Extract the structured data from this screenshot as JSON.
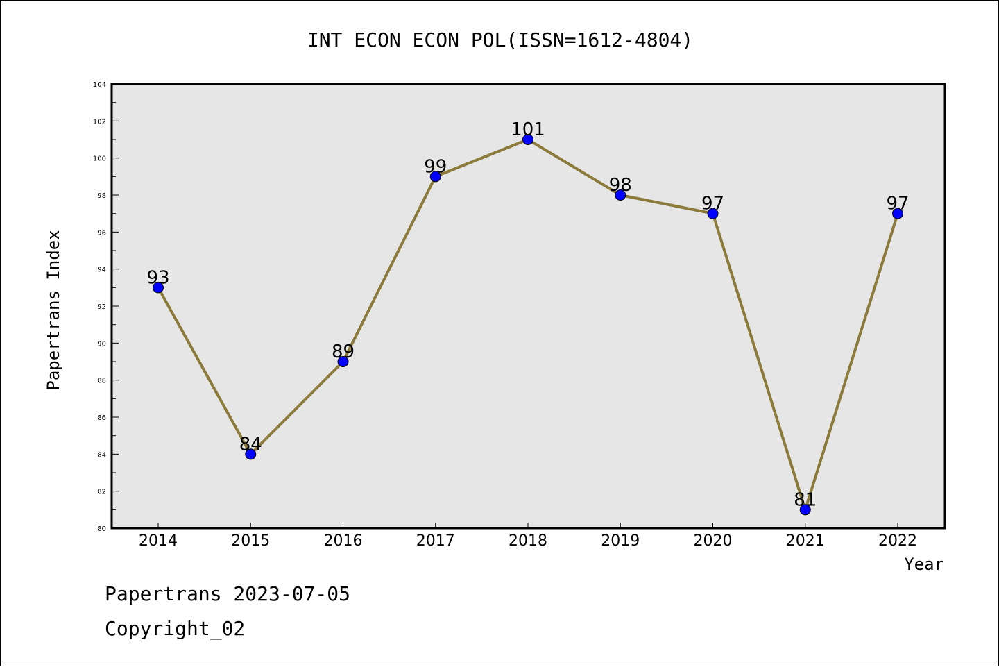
{
  "chart_data": {
    "type": "line",
    "title": "INT ECON ECON POL(ISSN=1612-4804)",
    "xlabel": "Year",
    "ylabel": "Papertrans Index",
    "categories": [
      "2014",
      "2015",
      "2016",
      "2017",
      "2018",
      "2019",
      "2020",
      "2021",
      "2022"
    ],
    "series": [
      {
        "values": [
          93,
          84,
          89,
          99,
          101,
          98,
          97,
          81,
          97
        ]
      }
    ],
    "ylim": [
      80,
      104
    ],
    "yticks": [
      80,
      82,
      84,
      86,
      88,
      90,
      92,
      94,
      96,
      98,
      100,
      102,
      104
    ],
    "grid": false,
    "colors": {
      "line": "#8b7a3a",
      "marker": "#0000ff",
      "plot_background": "#e6e6e6"
    }
  },
  "footer": {
    "line1": "Papertrans 2023-07-05",
    "line2": "Copyright_02"
  }
}
